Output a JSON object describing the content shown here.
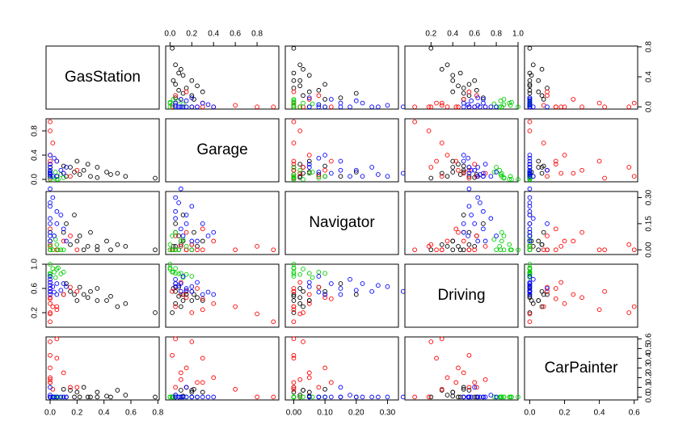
{
  "chart_data": {
    "type": "pairs",
    "variables": [
      {
        "name": "GasStation",
        "lim": [
          -0.03,
          0.81
        ],
        "xticks": [
          {
            "value": 0,
            "label": "0.0"
          },
          0.2,
          0.4,
          0.6,
          0.8
        ],
        "yticks": [
          {
            "value": 0,
            "label": "0.0"
          },
          0.4,
          0.8
        ]
      },
      {
        "name": "Garage",
        "lim": [
          -0.04,
          1.0
        ],
        "xticks": [
          {
            "value": 0,
            "label": "0.0"
          },
          0.2,
          0.4,
          0.6,
          0.8
        ],
        "yticks": [
          {
            "value": 0,
            "label": "0.0"
          },
          0.4,
          0.8
        ]
      },
      {
        "name": "Navigator",
        "lim": [
          -0.027,
          0.335
        ],
        "xticks": [
          {
            "value": 0,
            "label": "0.00"
          },
          {
            "value": 0.1,
            "label": "0.10"
          },
          {
            "value": 0.2,
            "label": "0.20"
          },
          {
            "value": 0.3,
            "label": "0.30"
          }
        ],
        "yticks": [
          {
            "value": 0,
            "label": "0.00"
          },
          0.15,
          {
            "value": 0.3,
            "label": "0.30"
          }
        ]
      },
      {
        "name": "Driving",
        "lim": [
          -0.04,
          1.0
        ],
        "xticks": [
          0.2,
          0.4,
          0.6,
          0.8,
          {
            "value": 1,
            "label": "1.0"
          }
        ],
        "yticks": [
          0.2,
          0.6,
          {
            "value": 1,
            "label": "1.0"
          }
        ]
      },
      {
        "name": "CarPainter",
        "lim": [
          -0.03,
          0.62
        ],
        "xticks": [
          {
            "value": 0,
            "label": "0.0"
          },
          0.2,
          0.4,
          0.6
        ],
        "yticks": [
          {
            "value": 0,
            "label": "0.0"
          },
          0.1,
          0.2,
          0.3,
          0.4,
          0.5,
          0.6
        ]
      }
    ],
    "series": [
      {
        "color": "#000000",
        "points": [
          [
            0.78,
            0.02,
            0.0,
            0.2,
            0.0
          ],
          [
            0.56,
            0.05,
            0.02,
            0.35,
            0.02
          ],
          [
            0.5,
            0.1,
            0.03,
            0.3,
            0.07
          ],
          [
            0.42,
            0.12,
            0.05,
            0.4,
            0.01
          ],
          [
            0.35,
            0.2,
            0.0,
            0.4,
            0.05
          ],
          [
            0.3,
            0.05,
            0.1,
            0.55,
            0.0
          ],
          [
            0.28,
            0.25,
            0.02,
            0.45,
            0.0
          ],
          [
            0.25,
            0.15,
            0.0,
            0.5,
            0.1
          ],
          [
            0.22,
            0.08,
            0.08,
            0.62,
            0.0
          ],
          [
            0.2,
            0.3,
            0.05,
            0.4,
            0.05
          ],
          [
            0.18,
            0.12,
            0.2,
            0.5,
            0.0
          ],
          [
            0.15,
            0.2,
            0.03,
            0.55,
            0.07
          ],
          [
            0.12,
            0.05,
            0.15,
            0.68,
            0.0
          ],
          [
            0.1,
            0.22,
            0.1,
            0.5,
            0.08
          ],
          [
            0.35,
            0.03,
            0.02,
            0.6,
            0.0
          ],
          [
            0.45,
            0.08,
            0.0,
            0.47,
            0.0
          ]
        ]
      },
      {
        "color": "#ff0000",
        "points": [
          [
            0.0,
            0.95,
            0.0,
            0.05,
            0.0
          ],
          [
            0.0,
            0.8,
            0.02,
            0.18,
            0.0
          ],
          [
            0.02,
            0.6,
            0.0,
            0.3,
            0.08
          ],
          [
            0.0,
            0.4,
            0.05,
            0.35,
            0.2
          ],
          [
            0.05,
            0.3,
            0.0,
            0.25,
            0.4
          ],
          [
            0.0,
            0.2,
            0.03,
            0.2,
            0.57
          ],
          [
            0.0,
            0.15,
            0.1,
            0.45,
            0.3
          ],
          [
            0.1,
            0.1,
            0.05,
            0.5,
            0.25
          ],
          [
            0.0,
            0.25,
            0.0,
            0.6,
            0.15
          ],
          [
            0.15,
            0.05,
            0.08,
            0.62,
            0.1
          ],
          [
            0.0,
            0.1,
            0.02,
            0.7,
            0.18
          ],
          [
            0.2,
            0.15,
            0.0,
            0.55,
            0.1
          ],
          [
            0.0,
            0.3,
            0.12,
            0.43,
            0.15
          ],
          [
            0.05,
            0.05,
            0.0,
            0.3,
            0.6
          ],
          [
            0.0,
            0.02,
            0.0,
            0.55,
            0.43
          ]
        ]
      },
      {
        "color": "#00cd00",
        "points": [
          [
            0.0,
            0.0,
            0.0,
            1.0,
            0.0
          ],
          [
            0.02,
            0.05,
            0.0,
            0.93,
            0.0
          ],
          [
            0.05,
            0.0,
            0.03,
            0.92,
            0.0
          ],
          [
            0.0,
            0.1,
            0.05,
            0.85,
            0.0
          ],
          [
            0.08,
            0.08,
            0.0,
            0.84,
            0.0
          ],
          [
            0.0,
            0.15,
            0.02,
            0.83,
            0.0
          ],
          [
            0.03,
            0.02,
            0.08,
            0.87,
            0.0
          ],
          [
            0.1,
            0.03,
            0.0,
            0.87,
            0.0
          ],
          [
            0.0,
            0.2,
            0.0,
            0.8,
            0.0
          ],
          [
            0.04,
            0.12,
            0.06,
            0.78,
            0.0
          ],
          [
            0.0,
            0.05,
            0.1,
            0.85,
            0.0
          ],
          [
            0.06,
            0.0,
            0.0,
            0.94,
            0.0
          ]
        ]
      },
      {
        "color": "#0000ff",
        "points": [
          [
            0.0,
            0.1,
            0.35,
            0.55,
            0.0
          ],
          [
            0.02,
            0.05,
            0.3,
            0.63,
            0.0
          ],
          [
            0.0,
            0.2,
            0.25,
            0.55,
            0.0
          ],
          [
            0.05,
            0.3,
            0.15,
            0.5,
            0.0
          ],
          [
            0.0,
            0.4,
            0.1,
            0.5,
            0.0
          ],
          [
            0.08,
            0.15,
            0.2,
            0.57,
            0.0
          ],
          [
            0.0,
            0.25,
            0.05,
            0.7,
            0.0
          ],
          [
            0.1,
            0.1,
            0.12,
            0.68,
            0.0
          ],
          [
            0.0,
            0.05,
            0.18,
            0.75,
            0.02
          ],
          [
            0.03,
            0.35,
            0.08,
            0.54,
            0.0
          ],
          [
            0.0,
            0.12,
            0.08,
            0.8,
            0.0
          ],
          [
            0.12,
            0.2,
            0.05,
            0.63,
            0.0
          ],
          [
            0.0,
            0.08,
            0.27,
            0.65,
            0.0
          ],
          [
            0.0,
            0.15,
            0.15,
            0.6,
            0.1
          ],
          [
            0.05,
            0.05,
            0.22,
            0.68,
            0.0
          ]
        ]
      }
    ]
  }
}
